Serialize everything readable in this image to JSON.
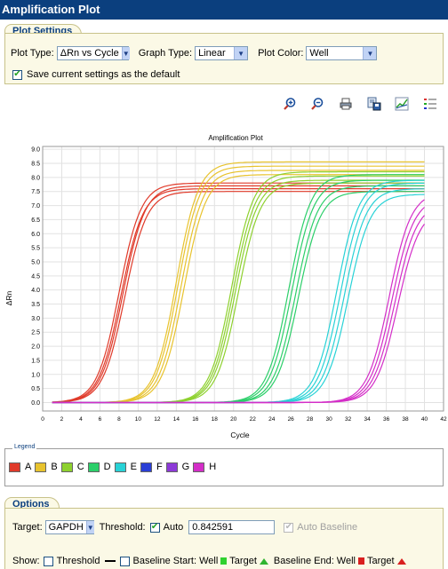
{
  "window": {
    "title": "Amplification Plot"
  },
  "plot_settings": {
    "tab_label": "Plot Settings",
    "plot_type_label": "Plot Type:",
    "plot_type_value": "ΔRn vs Cycle",
    "graph_type_label": "Graph Type:",
    "graph_type_value": "Linear",
    "plot_color_label": "Plot Color:",
    "plot_color_value": "Well",
    "save_default_label": "Save current settings as the default",
    "save_default_checked": true
  },
  "toolbar": {
    "icons": [
      "zoom-in-icon",
      "zoom-out-icon",
      "print-icon",
      "save-image-icon",
      "plot-properties-icon",
      "legend-toggle-icon"
    ]
  },
  "chart_data": {
    "type": "line",
    "title": "Amplification Plot",
    "xlabel": "Cycle",
    "ylabel": "ΔRn",
    "xlim": [
      0,
      42
    ],
    "ylim": [
      -0.3,
      9.1
    ],
    "xticks": [
      0,
      2,
      4,
      6,
      8,
      10,
      12,
      14,
      16,
      18,
      20,
      22,
      24,
      26,
      28,
      30,
      32,
      34,
      36,
      38,
      40,
      42
    ],
    "yticks": [
      0.0,
      0.5,
      1.0,
      1.5,
      2.0,
      2.5,
      3.0,
      3.5,
      4.0,
      4.5,
      5.0,
      5.5,
      6.0,
      6.5,
      7.0,
      7.5,
      8.0,
      8.5,
      9.0
    ],
    "grid": true,
    "series": [
      {
        "name": "A",
        "color": "#e03a2a",
        "curves": [
          {
            "midpoint": 8.0,
            "plateau": 7.8,
            "slope": 1.15
          },
          {
            "midpoint": 8.2,
            "plateau": 7.6,
            "slope": 1.15
          },
          {
            "midpoint": 8.4,
            "plateau": 7.7,
            "slope": 1.15
          },
          {
            "midpoint": 8.6,
            "plateau": 7.5,
            "slope": 1.15
          }
        ]
      },
      {
        "name": "B",
        "color": "#e8c32e",
        "curves": [
          {
            "midpoint": 14.0,
            "plateau": 8.55,
            "slope": 1.15
          },
          {
            "midpoint": 14.2,
            "plateau": 8.4,
            "slope": 1.15
          },
          {
            "midpoint": 14.5,
            "plateau": 8.25,
            "slope": 1.15
          },
          {
            "midpoint": 14.8,
            "plateau": 8.1,
            "slope": 1.15
          }
        ]
      },
      {
        "name": "C",
        "color": "#8ed12f",
        "curves": [
          {
            "midpoint": 19.8,
            "plateau": 8.2,
            "slope": 1.15
          },
          {
            "midpoint": 20.0,
            "plateau": 8.05,
            "slope": 1.15
          },
          {
            "midpoint": 20.2,
            "plateau": 7.9,
            "slope": 1.15
          },
          {
            "midpoint": 20.5,
            "plateau": 7.8,
            "slope": 1.15
          }
        ]
      },
      {
        "name": "D",
        "color": "#2ccf6a",
        "curves": [
          {
            "midpoint": 25.8,
            "plateau": 8.1,
            "slope": 1.15
          },
          {
            "midpoint": 26.1,
            "plateau": 7.9,
            "slope": 1.15
          },
          {
            "midpoint": 26.5,
            "plateau": 7.7,
            "slope": 1.15
          },
          {
            "midpoint": 26.8,
            "plateau": 7.5,
            "slope": 1.15
          }
        ]
      },
      {
        "name": "E",
        "color": "#28d2d6",
        "curves": [
          {
            "midpoint": 30.8,
            "plateau": 7.9,
            "slope": 1.15
          },
          {
            "midpoint": 31.2,
            "plateau": 7.8,
            "slope": 1.15
          },
          {
            "midpoint": 31.6,
            "plateau": 7.6,
            "slope": 1.15
          },
          {
            "midpoint": 32.0,
            "plateau": 7.4,
            "slope": 1.15
          }
        ]
      },
      {
        "name": "F",
        "color": "#2a3fd6",
        "curves": []
      },
      {
        "name": "G",
        "color": "#8d3ad8",
        "curves": []
      },
      {
        "name": "H",
        "color": "#d42ec8",
        "curves": [
          {
            "midpoint": 36.3,
            "plateau": 7.5,
            "slope": 1.15
          },
          {
            "midpoint": 36.6,
            "plateau": 7.3,
            "slope": 1.15
          },
          {
            "midpoint": 36.9,
            "plateau": 7.1,
            "slope": 1.15
          },
          {
            "midpoint": 37.2,
            "plateau": 6.9,
            "slope": 1.15
          }
        ]
      }
    ]
  },
  "legend": {
    "title": "Legend",
    "items": [
      {
        "label": "A",
        "color": "#e03a2a"
      },
      {
        "label": "B",
        "color": "#e8c32e"
      },
      {
        "label": "C",
        "color": "#8ed12f"
      },
      {
        "label": "D",
        "color": "#2ccf6a"
      },
      {
        "label": "E",
        "color": "#28d2d6"
      },
      {
        "label": "F",
        "color": "#2a3fd6"
      },
      {
        "label": "G",
        "color": "#8d3ad8"
      },
      {
        "label": "H",
        "color": "#d42ec8"
      }
    ]
  },
  "options": {
    "tab_label": "Options",
    "target_label": "Target:",
    "target_value": "GAPDH",
    "threshold_label": "Threshold:",
    "auto_label": "Auto",
    "auto_checked": true,
    "threshold_value": "0.842591",
    "auto_baseline_label": "Auto Baseline",
    "show_label": "Show:",
    "threshold_show_label": "Threshold",
    "baseline_start_label": "Baseline Start: Well",
    "baseline_start_target_label": "Target",
    "baseline_end_label": "Baseline End: Well",
    "baseline_end_target_label": "Target"
  },
  "colors": {
    "title_bar": "#0b3f7e",
    "panel_bg": "#fbf9e6",
    "panel_border": "#c8c28a",
    "grid": "#e0e0e0"
  }
}
